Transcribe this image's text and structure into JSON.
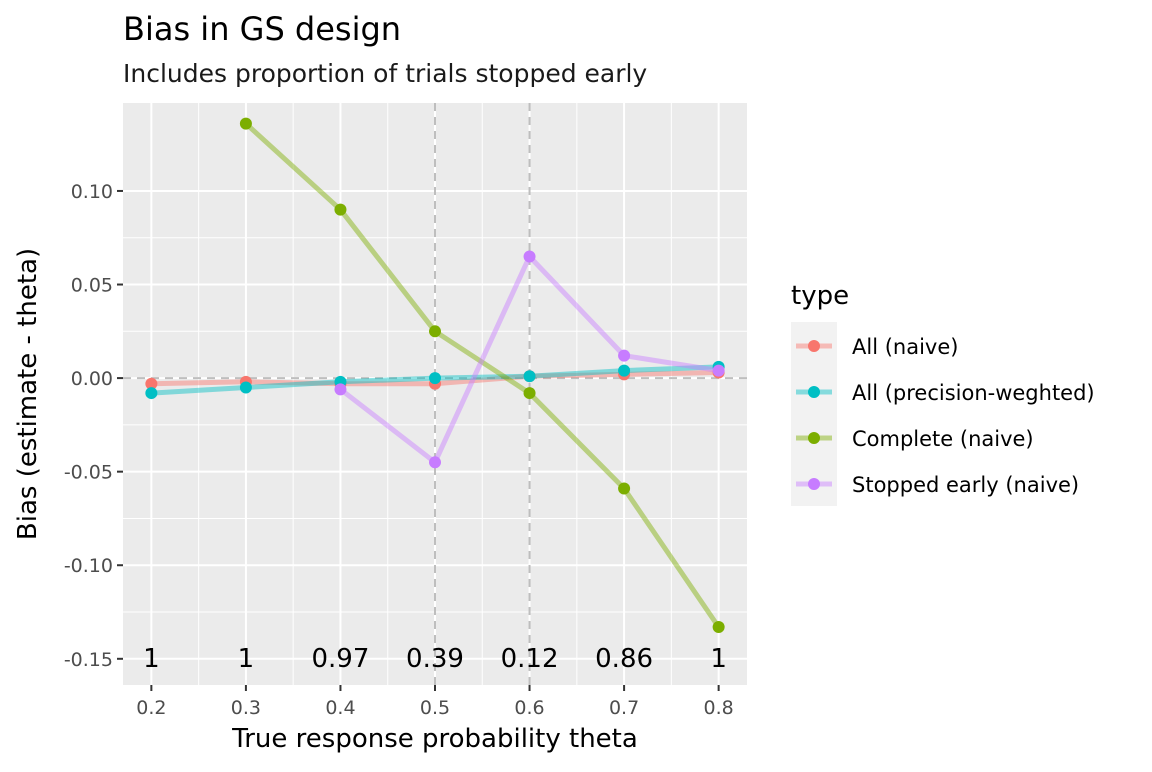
{
  "chart_data": {
    "type": "line",
    "title": "Bias in GS design",
    "subtitle": "Includes proportion of trials stopped early",
    "xlabel": "True response probability theta",
    "ylabel": "Bias (estimate - theta)",
    "x": [
      0.2,
      0.3,
      0.4,
      0.5,
      0.6,
      0.7,
      0.8
    ],
    "xticks": [
      "0.2",
      "0.3",
      "0.4",
      "0.5",
      "0.6",
      "0.7",
      "0.8"
    ],
    "yticks": [
      {
        "value": 0.1,
        "label": "0.10"
      },
      {
        "value": 0.05,
        "label": "0.05"
      },
      {
        "value": 0.0,
        "label": "0.00"
      },
      {
        "value": -0.05,
        "label": "-0.05"
      },
      {
        "value": -0.1,
        "label": "-0.10"
      },
      {
        "value": -0.15,
        "label": "-0.15"
      }
    ],
    "xlim": [
      0.17,
      0.83
    ],
    "ylim": [
      -0.164,
      0.147
    ],
    "reference_vlines_x": [
      0.5,
      0.6
    ],
    "reference_hline_y": 0,
    "grid": true,
    "legend": {
      "title": "type",
      "position": "right"
    },
    "series": [
      {
        "name": "All (naive)",
        "color": "#F8766D",
        "values": [
          -0.003,
          -0.002,
          -0.003,
          -0.003,
          0.001,
          0.002,
          0.003
        ]
      },
      {
        "name": "All (precision-weghted)",
        "color": "#00BFC4",
        "values": [
          -0.008,
          -0.005,
          -0.002,
          0.0,
          0.001,
          0.004,
          0.006
        ]
      },
      {
        "name": "Complete (naive)",
        "color": "#7CAE00",
        "x": [
          0.3,
          0.4,
          0.5,
          0.6,
          0.7,
          0.8
        ],
        "values": [
          0.136,
          0.09,
          0.025,
          -0.008,
          -0.059,
          -0.133
        ]
      },
      {
        "name": "Stopped early (naive)",
        "color": "#C77CFF",
        "x": [
          0.4,
          0.5,
          0.6,
          0.7,
          0.8
        ],
        "values": [
          -0.006,
          -0.045,
          0.065,
          0.012,
          0.004
        ]
      }
    ],
    "annotations": [
      {
        "x": 0.2,
        "text": "1"
      },
      {
        "x": 0.3,
        "text": "1"
      },
      {
        "x": 0.4,
        "text": "0.97"
      },
      {
        "x": 0.5,
        "text": "0.39"
      },
      {
        "x": 0.6,
        "text": "0.12"
      },
      {
        "x": 0.7,
        "text": "0.86"
      },
      {
        "x": 0.8,
        "text": "1"
      }
    ]
  }
}
